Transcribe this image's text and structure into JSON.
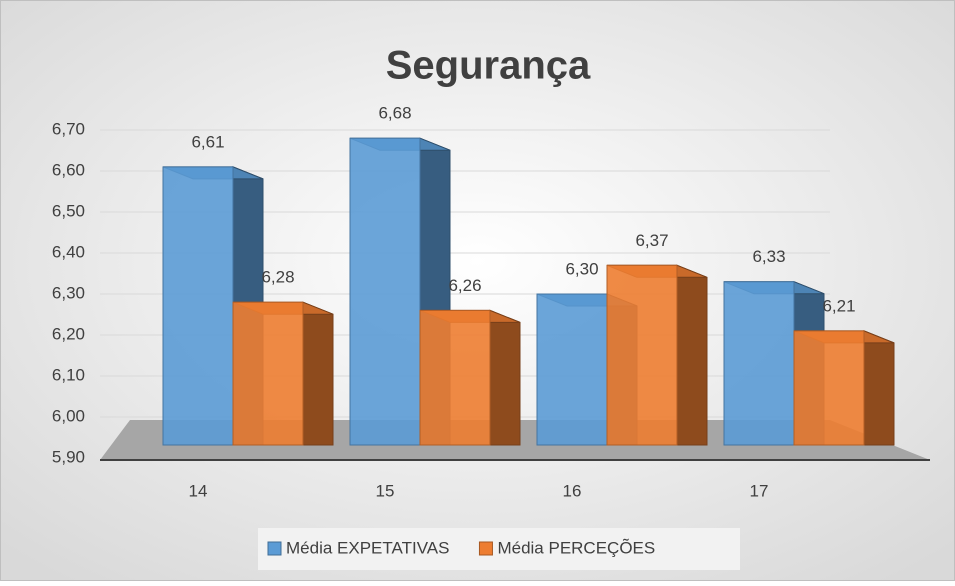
{
  "chart_data": {
    "type": "bar3d",
    "title": "Segurança",
    "categories": [
      "14",
      "15",
      "16",
      "17"
    ],
    "series": [
      {
        "name": "Média EXPETATIVAS",
        "color": "#5b9bd5",
        "values": [
          6.61,
          6.68,
          6.3,
          6.33
        ],
        "value_labels": [
          "6,61",
          "6,68",
          "6,30",
          "6,33"
        ]
      },
      {
        "name": "Média PERCEÇÕES",
        "color": "#ed7d31",
        "values": [
          6.28,
          6.26,
          6.37,
          6.21
        ],
        "value_labels": [
          "6,28",
          "6,26",
          "6,37",
          "6,21"
        ]
      }
    ],
    "ylim": [
      5.9,
      6.7
    ],
    "yticks": [
      {
        "value": 5.9,
        "label": "5,90"
      },
      {
        "value": 6.0,
        "label": "6,00"
      },
      {
        "value": 6.1,
        "label": "6,10"
      },
      {
        "value": 6.2,
        "label": "6,20"
      },
      {
        "value": 6.3,
        "label": "6,30"
      },
      {
        "value": 6.4,
        "label": "6,40"
      },
      {
        "value": 6.5,
        "label": "6,50"
      },
      {
        "value": 6.6,
        "label": "6,60"
      },
      {
        "value": 6.7,
        "label": "6,70"
      }
    ],
    "grid": true,
    "legend": "bottom"
  }
}
